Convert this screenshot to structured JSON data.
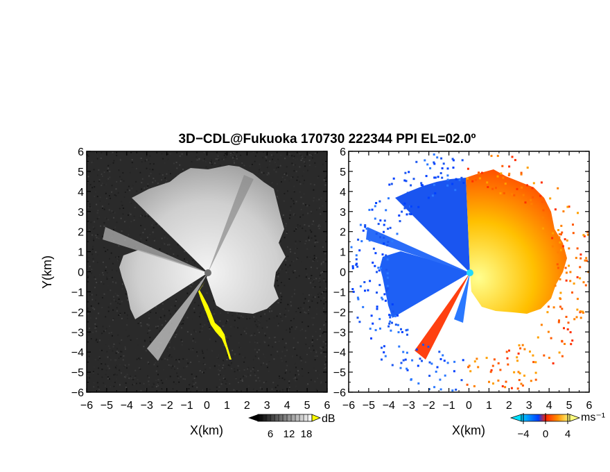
{
  "title": "3D−CDL@Fukuoka 170730 222344 PPI EL=02.0º",
  "chart_data": [
    {
      "type": "heatmap",
      "panel": "left",
      "quantity": "SNR",
      "xlabel": "X(km)",
      "ylabel": "Y(km)",
      "xlim": [
        -6,
        6
      ],
      "ylim": [
        -6,
        6
      ],
      "xticks": [
        -6,
        -5,
        -4,
        -3,
        -2,
        -1,
        0,
        1,
        2,
        3,
        4,
        5,
        6
      ],
      "xtick_labels": [
        "−6",
        "−5",
        "−4",
        "−3",
        "−2",
        "−1",
        "0",
        "1",
        "2",
        "3",
        "4",
        "5",
        "6"
      ],
      "yticks": [
        6,
        5,
        4,
        3,
        2,
        1,
        0,
        -1,
        -2,
        -3,
        -4,
        -5,
        -6
      ],
      "ytick_labels": [
        "6",
        "5",
        "4",
        "3",
        "2",
        "1",
        "0",
        "−1",
        "−2",
        "−3",
        "−4",
        "−5",
        "−6"
      ],
      "colormap": [
        "#000000",
        "#ffffff"
      ],
      "highlight_color": "#ffff00",
      "colorbar": {
        "unit": "dB",
        "ticks": [
          "6",
          "12",
          "18"
        ]
      }
    },
    {
      "type": "heatmap",
      "panel": "right",
      "quantity": "Doppler velocity",
      "xlabel": "X(km)",
      "xlim": [
        -6,
        6
      ],
      "ylim": [
        -6,
        6
      ],
      "xticks": [
        -6,
        -5,
        -4,
        -3,
        -2,
        -1,
        0,
        1,
        2,
        3,
        4,
        5,
        6
      ],
      "xtick_labels": [
        "−6",
        "−5",
        "−4",
        "−3",
        "−2",
        "−1",
        "0",
        "1",
        "2",
        "3",
        "4",
        "5",
        "6"
      ],
      "yticks": [
        6,
        5,
        4,
        3,
        2,
        1,
        0,
        -1,
        -2,
        -3,
        -4,
        -5,
        -6
      ],
      "ytick_labels": [
        "6",
        "5",
        "4",
        "3",
        "2",
        "1",
        "0",
        "−1",
        "−2",
        "−3",
        "−4",
        "−5",
        "−6"
      ],
      "colormap": [
        "#00b4ff",
        "#0040ff",
        "#ff3000",
        "#ffa000",
        "#ffff80"
      ],
      "colorbar": {
        "unit": "ms⁻¹",
        "ticks": [
          "−4",
          "0",
          "4"
        ]
      }
    }
  ]
}
